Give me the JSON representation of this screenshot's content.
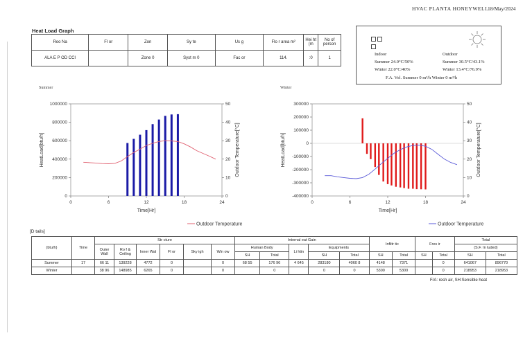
{
  "header": {
    "title": "HVAC PLANTA HONEYWELL",
    "date": "18/May/2024"
  },
  "report_title": "Heat Load Graph",
  "room_table": {
    "headers": [
      "Roo Na",
      "Fl or",
      "Zon",
      "Sy te",
      "Us g",
      "Flo r area m²",
      "Hei ht (m",
      "No of person"
    ],
    "row": [
      "ALA E P OD CCI",
      "",
      "Zone 0",
      "Syst m 0",
      "Fac or",
      "114.",
      ":0",
      "1"
    ]
  },
  "conditions": {
    "indoor_label": "Indoor",
    "outdoor_label": "Outdoor",
    "summer_indoor": "Summer 24.0°C/50%",
    "winter_indoor": "Winter 22.0°C/40%",
    "summer_outdoor": "Summer 30.5°C/43.1%",
    "winter_outdoor": "Winter 13.4°C/76.9%",
    "fa_line": "F.A. Vol.  Summer 0 m³/h  Winter 0 m³/h"
  },
  "chart_data": [
    {
      "type": "bar",
      "title": "Summer",
      "xlabel": "Time[Hr]",
      "ylabel": "HeatLoad[btu/h]",
      "y2label": "Outdoor Temperature[°C]",
      "xlim": [
        0,
        24
      ],
      "ylim": [
        0,
        1000000
      ],
      "y2lim": [
        0,
        50
      ],
      "xticks": [
        0,
        6,
        12,
        18,
        24
      ],
      "yticks": [
        0,
        200000,
        400000,
        600000,
        800000,
        1000000
      ],
      "y2ticks": [
        0,
        10,
        20,
        30,
        40,
        50
      ],
      "bar_color": "#1a1aa6",
      "line_color": "#e06070",
      "bars": {
        "x": [
          9,
          10,
          11,
          12,
          13,
          14,
          15,
          16,
          17
        ],
        "values": [
          575000,
          620000,
          665000,
          715000,
          780000,
          830000,
          870000,
          885000,
          888000
        ]
      },
      "line": {
        "name": "Outdoor Temperature",
        "x": [
          2,
          3,
          4,
          5,
          6,
          7,
          8,
          9,
          10,
          11,
          12,
          13,
          14,
          15,
          16,
          17,
          18,
          19,
          20,
          21,
          22,
          23
        ],
        "values": [
          18.3,
          18.1,
          17.9,
          17.6,
          17.5,
          17.7,
          19.0,
          21.4,
          23.6,
          25.4,
          27.4,
          28.6,
          29.6,
          30.0,
          29.9,
          29.5,
          28.3,
          26.6,
          24.6,
          23.1,
          21.6,
          20.0
        ]
      },
      "legend": "bottom-right"
    },
    {
      "type": "bar",
      "title": "Winter",
      "xlabel": "Time[Hr]",
      "ylabel": "HeatLoad[btu/h]",
      "y2label": "Outdoor Temperature[°C]",
      "xlim": [
        0,
        24
      ],
      "ylim": [
        -400000,
        300000
      ],
      "y2lim": [
        0,
        50
      ],
      "xticks": [
        0,
        6,
        12,
        18,
        24
      ],
      "yticks": [
        -400000,
        -300000,
        -200000,
        -100000,
        0,
        100000,
        200000,
        300000
      ],
      "y2ticks": [
        0,
        10,
        20,
        30,
        40,
        50
      ],
      "bar_color": "#e01a1a",
      "line_color": "#5a5ad8",
      "bars": {
        "x": [
          8,
          8.7,
          9.3,
          10,
          10.6,
          11.3,
          12,
          12.6,
          13.3,
          14,
          14.6,
          15.3,
          16,
          16.6,
          17.3,
          18
        ],
        "values": [
          190000,
          -80000,
          -120000,
          -180000,
          -240000,
          -290000,
          -310000,
          -320000,
          -330000,
          -335000,
          -340000,
          -345000,
          -345000,
          -348000,
          -349000,
          -350000
        ]
      },
      "line": {
        "name": "Outdoor Temperature",
        "x": [
          2,
          3,
          4,
          5,
          6,
          7,
          8,
          9,
          10,
          11,
          12,
          13,
          14,
          15,
          16,
          17,
          18,
          19,
          20,
          21,
          22,
          23
        ],
        "values": [
          11.0,
          11.0,
          10.4,
          10.0,
          9.6,
          9.4,
          10.0,
          11.8,
          14.6,
          17.6,
          20.4,
          23.2,
          25.2,
          26.6,
          27.4,
          27.6,
          27.0,
          25.3,
          22.6,
          20.0,
          18.2,
          17.0
        ]
      },
      "legend": "bottom-right"
    }
  ],
  "details": {
    "label": "[D tails]",
    "col_structure": "Str cture",
    "col_internal": "Internal eat Gain",
    "col_infil": "Infiltr tic",
    "col_fresh": "Fres ir",
    "col_total": "Total",
    "col_total_sub": "(S.F. In luded)",
    "unit": "(btu/h)",
    "time": "Time",
    "outer_wall": "Outer Wall",
    "roof": "Ro f & Ceiling",
    "inner_wall": "Inner Wal",
    "floor": "Fl or",
    "skylight": "Sky igh",
    "window": "Win ow",
    "human": "Human Body",
    "lighting": "Li htin",
    "equip": "Equipments",
    "sh": "SH",
    "total": "Total",
    "rows": [
      [
        "Summer",
        "17",
        "66 11",
        "139228",
        "4772",
        "0",
        "",
        "0",
        "68 55",
        "176 96",
        "4 645",
        "283180",
        "4060 8",
        "4148",
        "7371",
        "",
        "0",
        "641067",
        "896770"
      ],
      [
        "Winter",
        "",
        "38 96",
        "148985",
        "6265",
        "0",
        "",
        "0",
        "",
        "0",
        "",
        "0",
        "0",
        "5300",
        "5300",
        "",
        "0",
        "218953",
        "218953"
      ]
    ],
    "footnote": "F/A: resh air, SH:Sensible heat"
  }
}
